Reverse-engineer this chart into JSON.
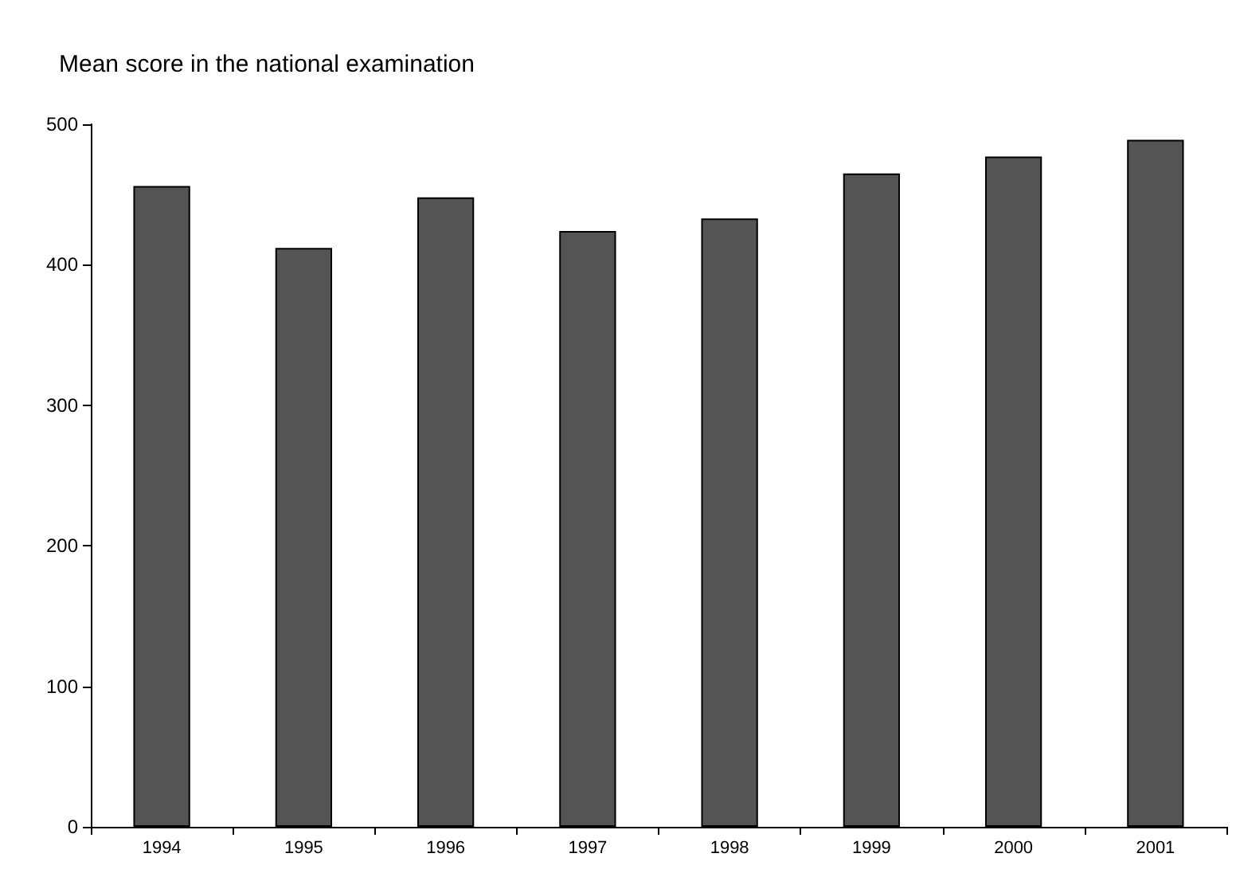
{
  "chart_data": {
    "type": "bar",
    "title": "Mean score in the national examination",
    "categories": [
      "1994",
      "1995",
      "1996",
      "1997",
      "1998",
      "1999",
      "2000",
      "2001"
    ],
    "values": [
      456,
      412,
      448,
      424,
      433,
      465,
      477,
      489
    ],
    "color": "#545454",
    "ylim": [
      0,
      500
    ],
    "yticks": [
      0,
      100,
      200,
      300,
      400,
      500
    ]
  }
}
